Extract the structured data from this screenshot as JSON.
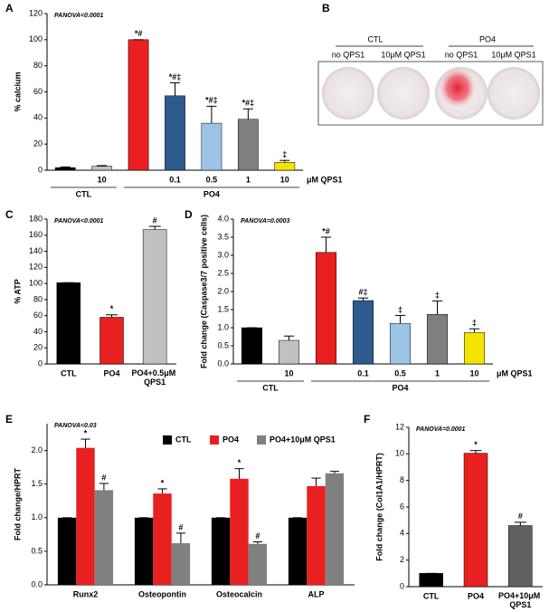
{
  "chart_data": [
    {
      "panel": "A",
      "type": "bar",
      "annotation": "PANOVA<0.0001",
      "ylabel": "% calcium",
      "categories": [
        null,
        "10",
        null,
        "0.1",
        "0.5",
        "1",
        "10"
      ],
      "values": [
        2,
        3,
        100,
        57,
        36,
        39,
        6
      ],
      "errors": [
        0.5,
        0.5,
        0,
        10,
        13,
        8,
        1.5
      ],
      "sig": [
        null,
        null,
        "*#",
        "*#‡",
        "*#‡",
        "*#‡",
        "‡"
      ],
      "colors": [
        "#000000",
        "#c0c0c0",
        "#e8201f",
        "#2e5b8e",
        "#9dc3e6",
        "#7f7f7f",
        "#f5e400"
      ],
      "groups": [
        "CTL",
        "PO4"
      ],
      "x_unit": "μM QPS1",
      "ylim": [
        0,
        120
      ],
      "yticks": [
        0,
        20,
        40,
        60,
        80,
        100,
        120
      ]
    },
    {
      "panel": "B",
      "type": "image",
      "groups": [
        {
          "label": "CTL",
          "items": [
            "no QPS1",
            "10μM QPS1"
          ]
        },
        {
          "label": "PO4",
          "items": [
            "no QPS1",
            "10μM QPS1"
          ]
        }
      ]
    },
    {
      "panel": "C",
      "type": "bar",
      "annotation": "PANOVA<0.0001",
      "ylabel": "% ATP",
      "categories": [
        "CTL",
        "PO4",
        "PO4+0.5μM QPS1"
      ],
      "values": [
        101,
        58,
        167
      ],
      "errors": [
        0,
        3,
        4
      ],
      "sig": [
        null,
        "*",
        "#"
      ],
      "colors": [
        "#000000",
        "#e8201f",
        "#c0c0c0"
      ],
      "ylim": [
        0,
        180
      ],
      "yticks": [
        0,
        20,
        40,
        60,
        80,
        100,
        120,
        140,
        160,
        180
      ]
    },
    {
      "panel": "D",
      "type": "bar",
      "annotation": "PANOVA=0.0003",
      "ylabel": "Fold change (Caspase3/7 positive cells)",
      "categories": [
        null,
        "10",
        null,
        "0.1",
        "0.5",
        "1",
        "10"
      ],
      "values": [
        1.0,
        0.65,
        3.08,
        1.75,
        1.12,
        1.37,
        0.87
      ],
      "errors": [
        0,
        0.12,
        0.42,
        0.07,
        0.22,
        0.37,
        0.1
      ],
      "sig": [
        null,
        null,
        "*#",
        "#‡",
        "‡",
        "‡",
        "‡"
      ],
      "colors": [
        "#000000",
        "#c0c0c0",
        "#e8201f",
        "#2e5b8e",
        "#9dc3e6",
        "#7f7f7f",
        "#f5e400"
      ],
      "groups": [
        "CTL",
        "PO4"
      ],
      "x_unit": "μM QPS1",
      "ylim": [
        0,
        4
      ],
      "yticks": [
        {
          "value": 0,
          "label": "0.0"
        },
        0.5,
        {
          "value": 1,
          "label": "1.0"
        },
        1.5,
        {
          "value": 2,
          "label": "2.0"
        },
        2.5,
        {
          "value": 3,
          "label": "3.0"
        },
        3.5,
        {
          "value": 4,
          "label": "4.0"
        }
      ]
    },
    {
      "panel": "E",
      "type": "grouped_bar",
      "annotation": "PANOVA<0.03",
      "ylabel": "Fold change/HPRT",
      "categories": [
        "Runx2",
        "Osteopontin",
        "Osteocalcin",
        "ALP"
      ],
      "series": [
        {
          "name": "CTL",
          "color": "#000000",
          "values": [
            1,
            1,
            1,
            1
          ],
          "errors": [
            0,
            0,
            0,
            0
          ],
          "sig": [
            null,
            null,
            null,
            null
          ]
        },
        {
          "name": "PO4",
          "color": "#e8201f",
          "values": [
            2.04,
            1.36,
            1.58,
            1.47
          ],
          "errors": [
            0.13,
            0.07,
            0.15,
            0.12
          ],
          "sig": [
            "*",
            "*",
            "*",
            null
          ]
        },
        {
          "name": "PO4+10μM QPS1",
          "color": "#808080",
          "values": [
            1.41,
            0.62,
            0.61,
            1.66
          ],
          "errors": [
            0.1,
            0.15,
            0.03,
            0.03
          ],
          "sig": [
            "#",
            "#",
            "#",
            null
          ]
        }
      ],
      "ylim": [
        0,
        2.4
      ],
      "yticks": [
        {
          "value": 0,
          "label": "0.0"
        },
        0.5,
        {
          "value": 1,
          "label": "1.0"
        },
        1.5,
        {
          "value": 2,
          "label": "2.0"
        }
      ]
    },
    {
      "panel": "F",
      "type": "bar",
      "annotation": "PANOVA=0.0001",
      "ylabel": "Fold change (Col1A1/HPRT)",
      "categories": [
        "CTL",
        "PO4",
        "PO4+10μM QPS1"
      ],
      "values": [
        1,
        10.05,
        4.6
      ],
      "errors": [
        0,
        0.2,
        0.25
      ],
      "sig": [
        null,
        "*",
        "#"
      ],
      "colors": [
        "#000000",
        "#e8201f",
        "#606060"
      ],
      "ylim": [
        0,
        12
      ],
      "yticks": [
        0,
        2,
        4,
        6,
        8,
        10,
        12
      ]
    }
  ]
}
